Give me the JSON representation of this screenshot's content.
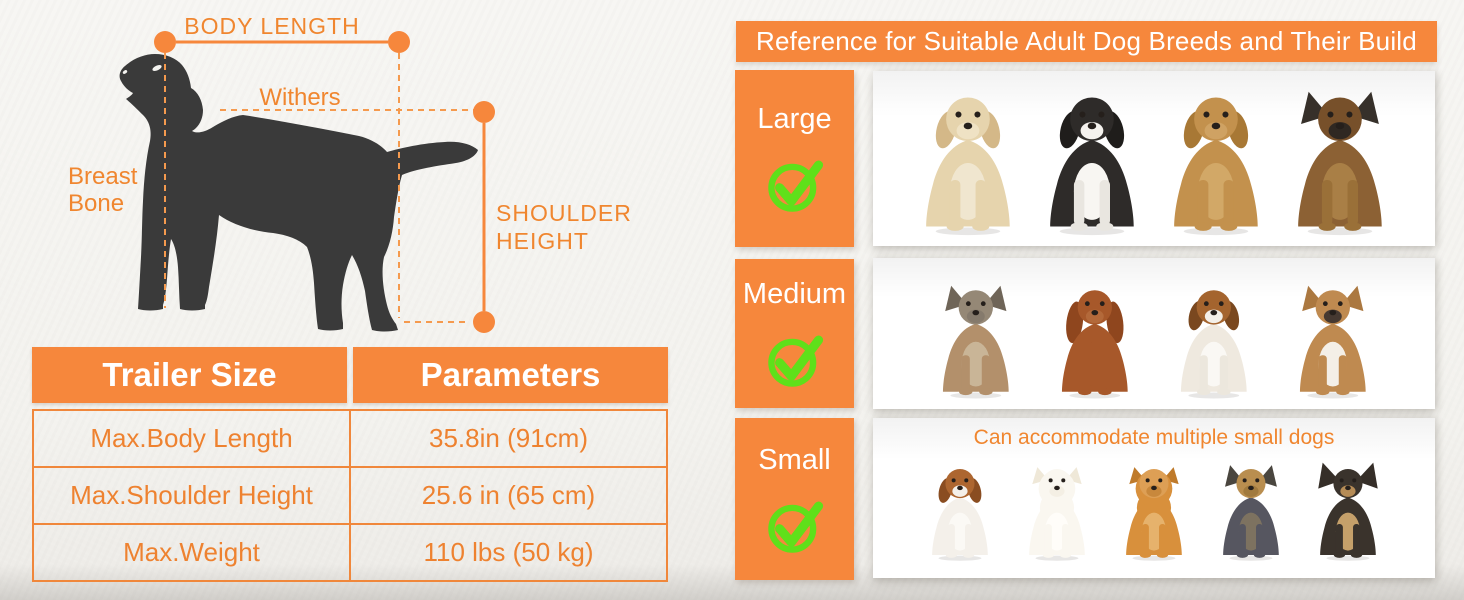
{
  "colors": {
    "accent_orange": "#f6873c",
    "text_orange": "#ee8230",
    "check_green": "#5fe01a",
    "silhouette_gray": "#3a3a3a",
    "panel_white": "#ffffff"
  },
  "diagram": {
    "labels": {
      "body_length": "BODY LENGTH",
      "withers": "Withers",
      "breast_bone_line1": "Breast",
      "breast_bone_line2": "Bone",
      "shoulder_height_line1": "SHOULDER",
      "shoulder_height_line2": "HEIGHT"
    }
  },
  "table": {
    "headers": [
      "Trailer Size",
      "Parameters"
    ],
    "rows": [
      {
        "label": "Max.Body Length",
        "value": "35.8in (91cm)"
      },
      {
        "label": "Max.Shoulder Height",
        "value": "25.6 in (65 cm)"
      },
      {
        "label": "Max.Weight",
        "value": "110 lbs (50 kg)"
      }
    ]
  },
  "reference": {
    "title": "Reference for Suitable Adult Dog Breeds and Their Build",
    "sizes": [
      {
        "label": "Large",
        "checked": true,
        "note": "",
        "dogs": [
          {
            "id": "labrador-retriever",
            "ears": "floppy",
            "body": "#e6d4ad",
            "head": "#e6d4ad",
            "ear": "#d4b888",
            "muzzle": "#efe2c4",
            "chest": "#f0e6cf"
          },
          {
            "id": "border-collie",
            "ears": "floppy",
            "body": "#2e2b29",
            "head": "#2e2b29",
            "ear": "#1f1d1b",
            "muzzle": "#f5f2ee",
            "chest": "#f8f6f2",
            "legs": "#e9e6e0"
          },
          {
            "id": "golden-retriever",
            "ears": "floppy",
            "body": "#c3914d",
            "head": "#c3914d",
            "ear": "#a87835",
            "muzzle": "#cfa263",
            "chest": "#d2a867"
          },
          {
            "id": "german-shepherd",
            "ears": "pointy",
            "body": "#8c6134",
            "head": "#77502a",
            "ear": "#36302a",
            "muzzle": "#2f2822",
            "chest": "#a97f46",
            "legs": "#9a7038"
          }
        ]
      },
      {
        "label": "Medium",
        "checked": true,
        "note": "",
        "dogs": [
          {
            "id": "terrier",
            "ears": "pointy",
            "body": "#b3906b",
            "head": "#958876",
            "ear": "#6f6558",
            "muzzle": "#857a6c",
            "chest": "#c9b597"
          },
          {
            "id": "cocker-spaniel",
            "ears": "long",
            "body": "#a7582a",
            "head": "#a7582a",
            "ear": "#8f461e",
            "muzzle": "#b3693a",
            "chest": "#a7582a"
          },
          {
            "id": "beagle",
            "ears": "floppy",
            "body": "#efe9df",
            "head": "#a4642e",
            "ear": "#7a481f",
            "muzzle": "#f3efe8",
            "chest": "#faf8f4",
            "legs": "#ece7dd"
          },
          {
            "id": "french-bulldog",
            "ears": "pointy",
            "body": "#bf8a50",
            "head": "#bf8a50",
            "ear": "#ab7840",
            "muzzle": "#463931",
            "chest": "#f4efe7"
          }
        ]
      },
      {
        "label": "Small",
        "checked": true,
        "note": "Can accommodate multiple small dogs",
        "dogs": [
          {
            "id": "jack-russell-terrier",
            "ears": "floppy",
            "body": "#f4f0ea",
            "head": "#ad6630",
            "ear": "#8a4d21",
            "muzzle": "#f4f0ea",
            "chest": "#fbf9f5"
          },
          {
            "id": "maltese",
            "ears": "fluffy",
            "body": "#faf7f0",
            "head": "#faf7f0",
            "ear": "#efe8d8",
            "muzzle": "#f4efe4",
            "chest": "#fffdf9"
          },
          {
            "id": "pomeranian",
            "ears": "fluffy",
            "body": "#d8903c",
            "head": "#dd9f55",
            "ear": "#bf7a2a",
            "muzzle": "#c8883c",
            "chest": "#e6b26c"
          },
          {
            "id": "yorkshire-terrier",
            "ears": "pointy",
            "body": "#565660",
            "head": "#b98e4f",
            "ear": "#4a463f",
            "muzzle": "#a17a3e",
            "chest": "#7d7260"
          },
          {
            "id": "chihuahua",
            "ears": "pointy-big",
            "body": "#3a332c",
            "head": "#3a332c",
            "ear": "#352e28",
            "muzzle": "#b68c56",
            "chest": "#c5a06a"
          }
        ]
      }
    ]
  }
}
